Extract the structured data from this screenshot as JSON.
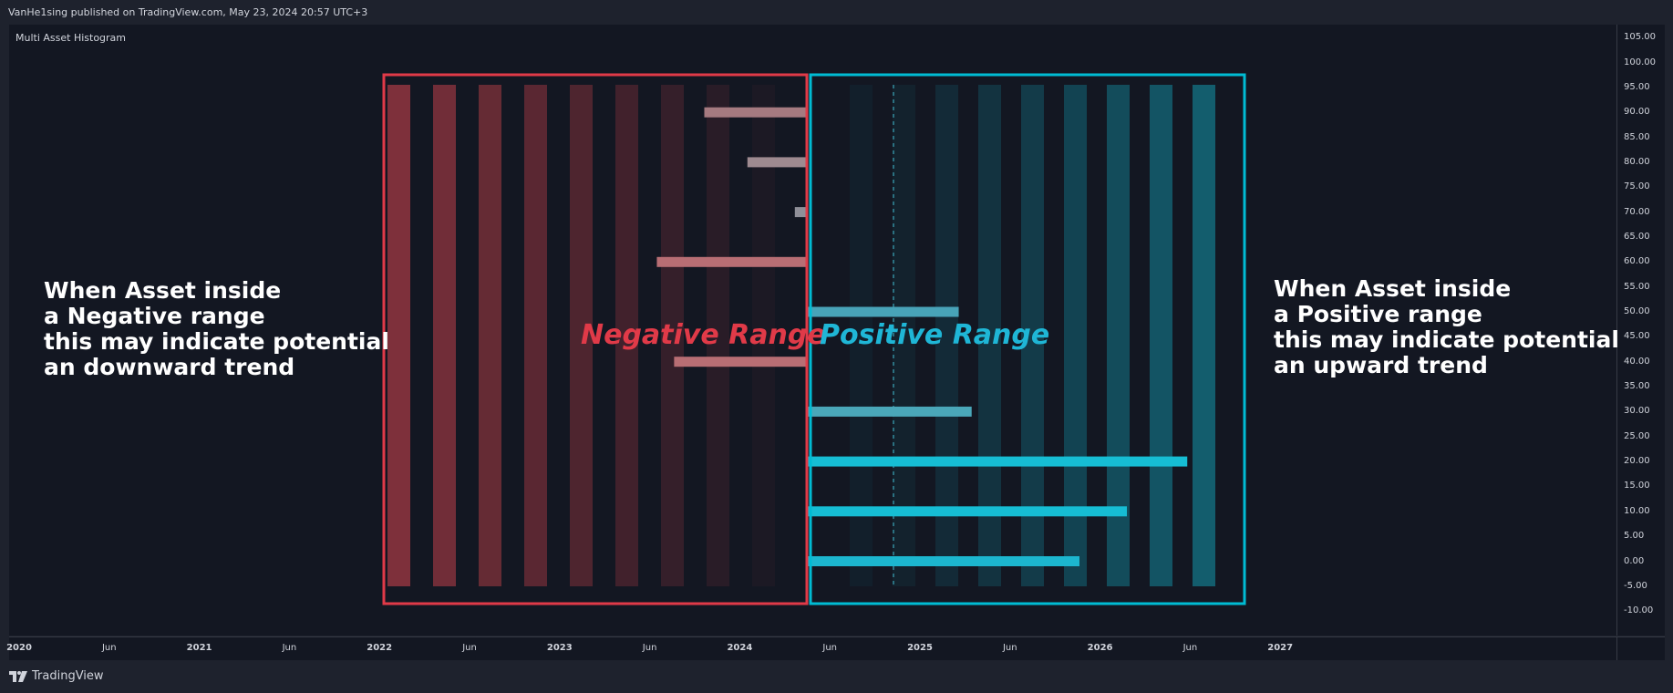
{
  "header": {
    "published_text": "VanHe1sing published on TradingView.com, May 23, 2024 20:57 UTC+3"
  },
  "indicator_title": "Multi Asset Histogram",
  "footer": {
    "brand": "TradingView"
  },
  "annotations": {
    "left": [
      "When Asset inside",
      "a Negative range",
      "this may indicate potential",
      "an downward trend"
    ],
    "right": [
      "When Asset inside",
      "a Positive range",
      "this may indicate potential",
      "an upward trend"
    ]
  },
  "colors": {
    "negative_box": "#e03a48",
    "positive_box": "#00bcd4",
    "negative_label": "#e03a48",
    "positive_label": "#1fb6d6"
  },
  "chart_data": {
    "type": "bar",
    "title": "Multi Asset Histogram",
    "orientation": "horizontal",
    "x_zero_label": "Jun",
    "range_labels": {
      "negative": "Negative Range",
      "positive": "Positive Range"
    },
    "y_axis": {
      "ylim": [
        -12,
        106
      ],
      "ticks": [
        "105.00",
        "100.00",
        "95.00",
        "90.00",
        "85.00",
        "80.00",
        "75.00",
        "70.00",
        "65.00",
        "60.00",
        "55.00",
        "50.00",
        "45.00",
        "40.00",
        "35.00",
        "30.00",
        "25.00",
        "20.00",
        "15.00",
        "10.00",
        "5.00",
        "0.00",
        "-5.00",
        "-10.00"
      ]
    },
    "x_axis": {
      "ticks": [
        "2020",
        "Jun",
        "2021",
        "Jun",
        "2022",
        "Jun",
        "2023",
        "Jun",
        "2024",
        "Jun",
        "2025",
        "Jun",
        "2026",
        "Jun",
        "2027"
      ]
    },
    "background_columns": {
      "negative": [
        1,
        2,
        3,
        4,
        5,
        6,
        7,
        8,
        9
      ],
      "positive": [
        1,
        2,
        3,
        4,
        5,
        6,
        7,
        8,
        9
      ]
    },
    "series": [
      {
        "y": 90,
        "value": -24,
        "color": "#a57a80"
      },
      {
        "y": 80,
        "value": -14,
        "color": "#9e8a90"
      },
      {
        "y": 70,
        "value": -3,
        "color": "#8f8f98"
      },
      {
        "y": 60,
        "value": -35,
        "color": "#b86e74"
      },
      {
        "y": 50,
        "value": 35,
        "color": "#48a3b8"
      },
      {
        "y": 40,
        "value": -31,
        "color": "#b86e74"
      },
      {
        "y": 30,
        "value": 38,
        "color": "#4aa7b9"
      },
      {
        "y": 20,
        "value": 88,
        "color": "#16bdd4"
      },
      {
        "y": 10,
        "value": 74,
        "color": "#16bdd4"
      },
      {
        "y": 0,
        "value": 63,
        "color": "#1cb6cf"
      }
    ]
  }
}
